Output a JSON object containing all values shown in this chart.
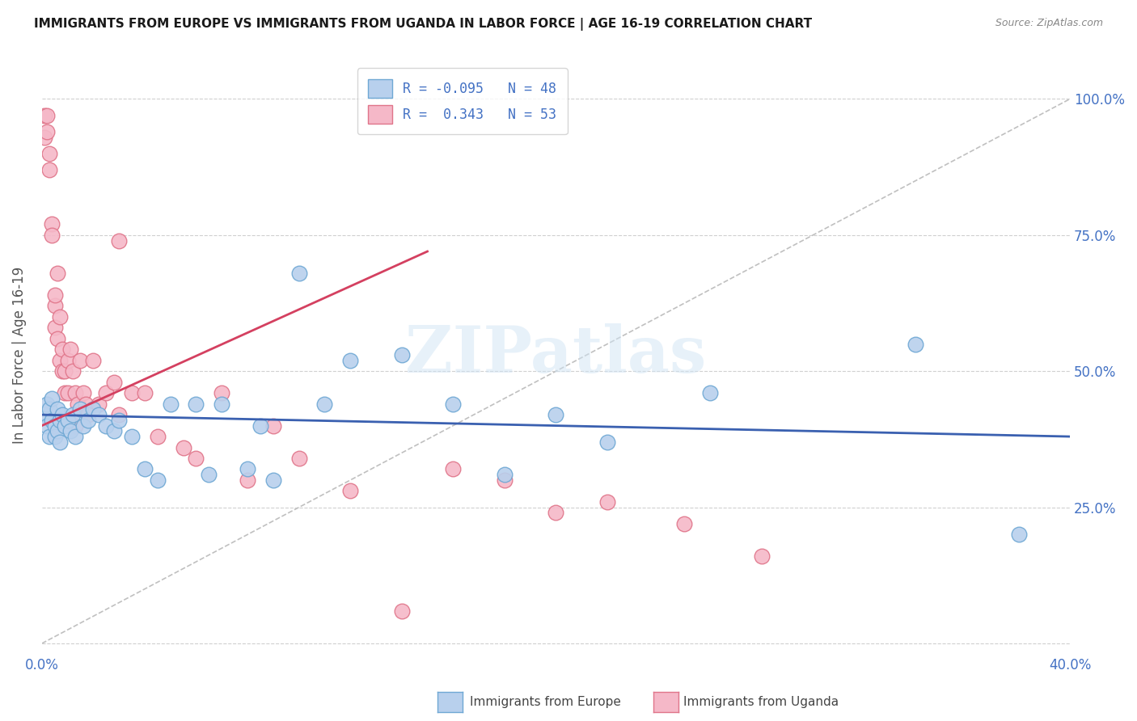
{
  "title": "IMMIGRANTS FROM EUROPE VS IMMIGRANTS FROM UGANDA IN LABOR FORCE | AGE 16-19 CORRELATION CHART",
  "source": "Source: ZipAtlas.com",
  "ylabel": "In Labor Force | Age 16-19",
  "xlim": [
    0.0,
    0.4
  ],
  "ylim": [
    -0.02,
    1.08
  ],
  "legend_europe_R": "-0.095",
  "legend_europe_N": "48",
  "legend_uganda_R": " 0.343",
  "legend_uganda_N": "53",
  "background_color": "#ffffff",
  "grid_color": "#d0d0d0",
  "europe_color": "#b8d0ed",
  "europe_edge_color": "#6fa8d4",
  "uganda_color": "#f5b8c8",
  "uganda_edge_color": "#e0758a",
  "europe_line_color": "#3a60b0",
  "uganda_line_color": "#d44060",
  "diagonal_color": "#c0c0c0",
  "watermark_text": "ZIPatlas",
  "europe_scatter_x": [
    0.001,
    0.002,
    0.002,
    0.003,
    0.003,
    0.004,
    0.004,
    0.005,
    0.005,
    0.006,
    0.006,
    0.007,
    0.007,
    0.008,
    0.009,
    0.01,
    0.011,
    0.012,
    0.013,
    0.015,
    0.016,
    0.018,
    0.02,
    0.022,
    0.025,
    0.028,
    0.03,
    0.035,
    0.04,
    0.045,
    0.05,
    0.06,
    0.065,
    0.07,
    0.08,
    0.085,
    0.09,
    0.1,
    0.11,
    0.12,
    0.14,
    0.16,
    0.18,
    0.2,
    0.22,
    0.26,
    0.34,
    0.38
  ],
  "europe_scatter_y": [
    0.42,
    0.44,
    0.4,
    0.43,
    0.38,
    0.41,
    0.45,
    0.4,
    0.38,
    0.43,
    0.39,
    0.41,
    0.37,
    0.42,
    0.4,
    0.41,
    0.39,
    0.42,
    0.38,
    0.43,
    0.4,
    0.41,
    0.43,
    0.42,
    0.4,
    0.39,
    0.41,
    0.38,
    0.32,
    0.3,
    0.44,
    0.44,
    0.31,
    0.44,
    0.32,
    0.4,
    0.3,
    0.68,
    0.44,
    0.52,
    0.53,
    0.44,
    0.31,
    0.42,
    0.37,
    0.46,
    0.55,
    0.2
  ],
  "uganda_scatter_x": [
    0.001,
    0.001,
    0.002,
    0.002,
    0.003,
    0.003,
    0.004,
    0.004,
    0.005,
    0.005,
    0.005,
    0.006,
    0.006,
    0.007,
    0.007,
    0.008,
    0.008,
    0.009,
    0.009,
    0.01,
    0.01,
    0.011,
    0.012,
    0.013,
    0.013,
    0.014,
    0.015,
    0.016,
    0.017,
    0.018,
    0.02,
    0.022,
    0.025,
    0.028,
    0.03,
    0.035,
    0.04,
    0.045,
    0.055,
    0.06,
    0.07,
    0.08,
    0.09,
    0.1,
    0.12,
    0.14,
    0.16,
    0.18,
    0.2,
    0.22,
    0.25,
    0.28,
    0.03
  ],
  "uganda_scatter_y": [
    0.93,
    0.97,
    0.94,
    0.97,
    0.87,
    0.9,
    0.77,
    0.75,
    0.62,
    0.58,
    0.64,
    0.56,
    0.68,
    0.6,
    0.52,
    0.54,
    0.5,
    0.5,
    0.46,
    0.52,
    0.46,
    0.54,
    0.5,
    0.46,
    0.4,
    0.44,
    0.52,
    0.46,
    0.44,
    0.42,
    0.52,
    0.44,
    0.46,
    0.48,
    0.42,
    0.46,
    0.46,
    0.38,
    0.36,
    0.34,
    0.46,
    0.3,
    0.4,
    0.34,
    0.28,
    0.06,
    0.32,
    0.3,
    0.24,
    0.26,
    0.22,
    0.16,
    0.74
  ]
}
